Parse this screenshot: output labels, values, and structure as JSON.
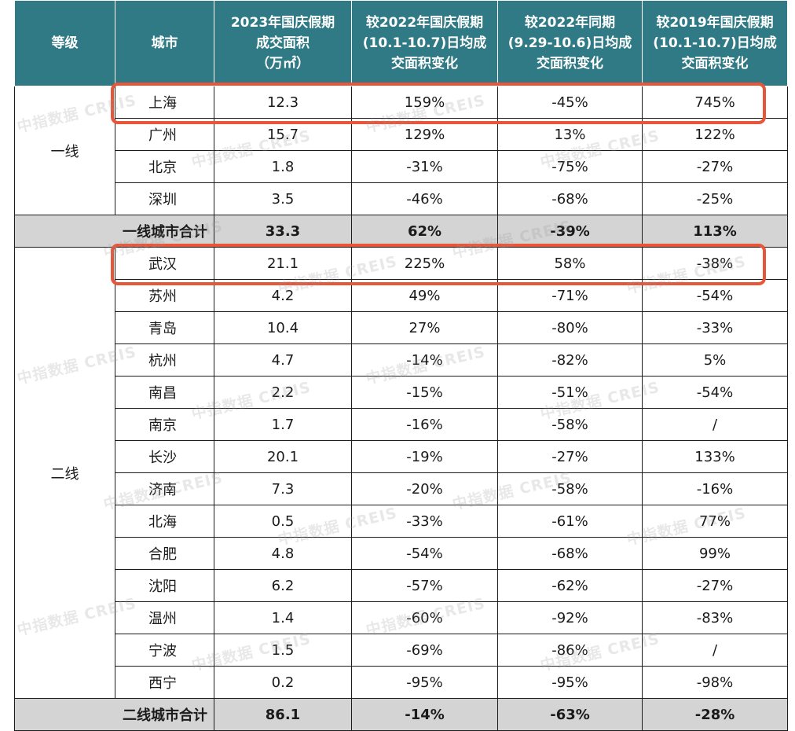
{
  "header": {
    "tier": "等级",
    "city": "城市",
    "area": [
      "2023年国庆假期",
      "成交面积",
      "（万㎡）"
    ],
    "vs_2022_holiday": [
      "较2022年国庆假期",
      "(10.1-10.7)日均成",
      "交面积变化"
    ],
    "vs_2022_same_period": [
      "较2022年同期",
      "(9.29-10.6)日均成",
      "交面积变化"
    ],
    "vs_2019_holiday": [
      "较2019年国庆假期",
      "(10.1-10.7)日均成",
      "交面积变化"
    ]
  },
  "groups": [
    {
      "tier": "一线",
      "rows": [
        {
          "city": "上海",
          "area": "12.3",
          "a": "159%",
          "b": "-45%",
          "c": "745%"
        },
        {
          "city": "广州",
          "area": "15.7",
          "a": "129%",
          "b": "13%",
          "c": "122%"
        },
        {
          "city": "北京",
          "area": "1.8",
          "a": "-31%",
          "b": "-75%",
          "c": "-27%"
        },
        {
          "city": "深圳",
          "area": "3.5",
          "a": "-46%",
          "b": "-68%",
          "c": "-25%"
        }
      ],
      "subtotal": {
        "label": "一线城市合计",
        "area": "33.3",
        "a": "62%",
        "b": "-39%",
        "c": "113%"
      }
    },
    {
      "tier": "二线",
      "rows": [
        {
          "city": "武汉",
          "area": "21.1",
          "a": "225%",
          "b": "58%",
          "c": "-38%"
        },
        {
          "city": "苏州",
          "area": "4.2",
          "a": "49%",
          "b": "-71%",
          "c": "-54%"
        },
        {
          "city": "青岛",
          "area": "10.4",
          "a": "27%",
          "b": "-80%",
          "c": "-33%"
        },
        {
          "city": "杭州",
          "area": "4.7",
          "a": "-14%",
          "b": "-82%",
          "c": "5%"
        },
        {
          "city": "南昌",
          "area": "2.2",
          "a": "-15%",
          "b": "-51%",
          "c": "-54%"
        },
        {
          "city": "南京",
          "area": "1.7",
          "a": "-16%",
          "b": "-58%",
          "c": "/"
        },
        {
          "city": "长沙",
          "area": "20.1",
          "a": "-19%",
          "b": "-27%",
          "c": "133%"
        },
        {
          "city": "济南",
          "area": "7.3",
          "a": "-20%",
          "b": "-58%",
          "c": "-16%"
        },
        {
          "city": "北海",
          "area": "0.5",
          "a": "-33%",
          "b": "-61%",
          "c": "77%"
        },
        {
          "city": "合肥",
          "area": "4.8",
          "a": "-54%",
          "b": "-68%",
          "c": "99%"
        },
        {
          "city": "沈阳",
          "area": "6.2",
          "a": "-57%",
          "b": "-62%",
          "c": "-27%"
        },
        {
          "city": "温州",
          "area": "1.4",
          "a": "-60%",
          "b": "-92%",
          "c": "-83%"
        },
        {
          "city": "宁波",
          "area": "1.5",
          "a": "-69%",
          "b": "-86%",
          "c": "/"
        },
        {
          "city": "西宁",
          "area": "0.2",
          "a": "-95%",
          "b": "-95%",
          "c": "-98%"
        }
      ],
      "subtotal": {
        "label": "二线城市合计",
        "area": "86.1",
        "a": "-14%",
        "b": "-63%",
        "c": "-28%"
      }
    }
  ],
  "highlights": [
    "上海",
    "武汉"
  ],
  "highlight_color": "#e8563a",
  "header_color": "#2f7a85",
  "subtotal_color": "#d4d4d4",
  "watermark": {
    "cn": "中指数据",
    "en": "CREIS"
  }
}
